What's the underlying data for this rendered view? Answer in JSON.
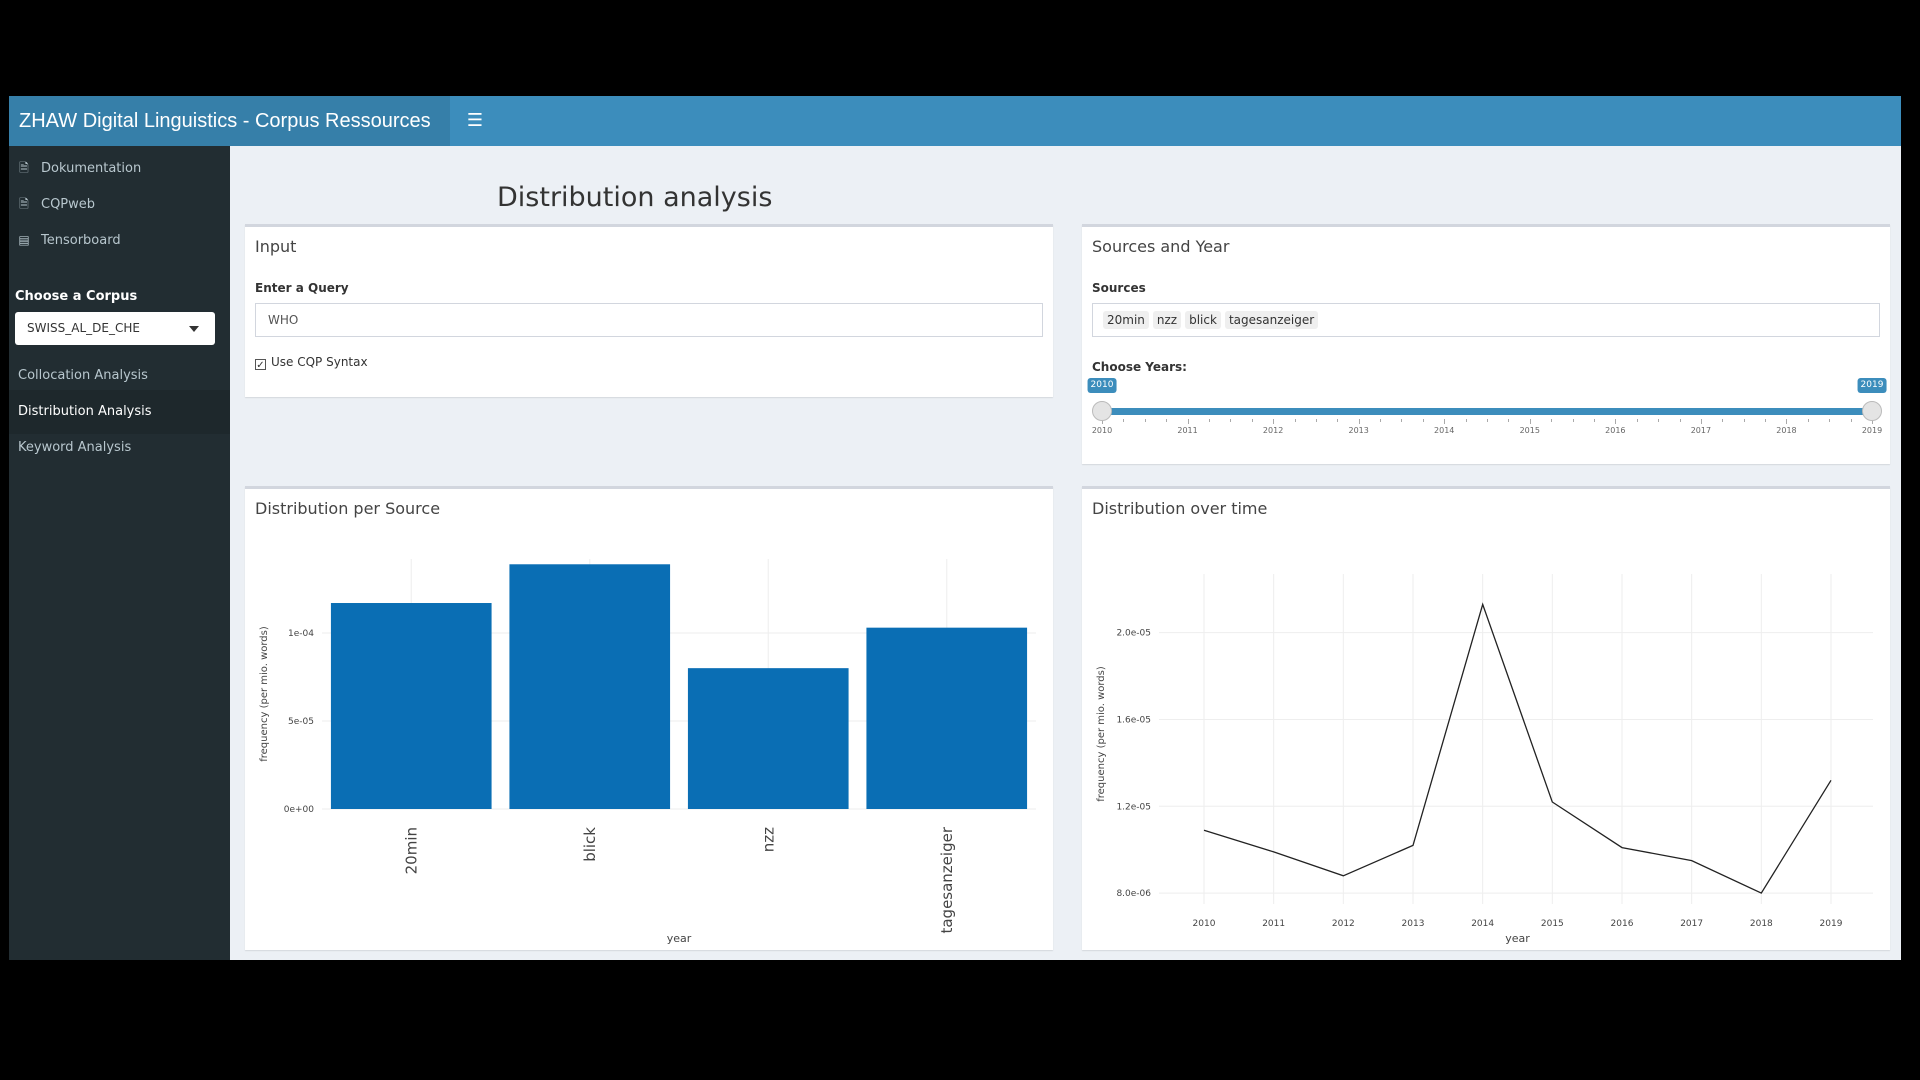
{
  "header": {
    "title": "ZHAW Digital Linguistics - Corpus Ressources",
    "menu_icon": "bars-icon"
  },
  "sidebar": {
    "links": [
      {
        "label": "Dokumentation",
        "icon": "file-icon"
      },
      {
        "label": "CQPweb",
        "icon": "file-icon"
      },
      {
        "label": "Tensorboard",
        "icon": "chart-icon"
      }
    ],
    "corpus_label": "Choose a Corpus",
    "corpus_value": "SWISS_AL_DE_CHE",
    "menu": [
      {
        "label": "Collocation Analysis"
      },
      {
        "label": "Distribution Analysis",
        "active": true
      },
      {
        "label": "Keyword Analysis"
      }
    ]
  },
  "main": {
    "page_title": "Distribution analysis",
    "input_box": {
      "title": "Input",
      "query_label": "Enter a Query",
      "query_value": "WHO",
      "cqp_label": "Use CQP Syntax",
      "cqp_checked": true
    },
    "sources_box": {
      "title": "Sources and Year",
      "sources_label": "Sources",
      "sources": [
        "20min",
        "nzz",
        "blick",
        "tagesanzeiger"
      ],
      "years_label": "Choose Years:",
      "year_min": 2010,
      "year_max": 2019,
      "selected_from": "2010",
      "selected_to": "2019",
      "year_ticks": [
        "2010",
        "2011",
        "2012",
        "2013",
        "2014",
        "2015",
        "2016",
        "2017",
        "2018",
        "2019"
      ]
    },
    "source_chart_title": "Distribution per Source",
    "time_chart_title": "Distribution over time"
  },
  "chart_data": [
    {
      "type": "bar",
      "categories": [
        "20min",
        "blick",
        "nzz",
        "tagesanzeiger"
      ],
      "values": [
        0.000117,
        0.000139,
        8e-05,
        0.000103
      ],
      "ylim": [
        0,
        0.000142
      ],
      "yticks": [
        0,
        5e-05,
        0.0001
      ],
      "ytick_labels": [
        "0e+00",
        "5e-05",
        "1e-04"
      ],
      "xlabel": "year",
      "ylabel": "frequency (per mio. words)",
      "color": "#0a6eb4"
    },
    {
      "type": "line",
      "x": [
        2010,
        2011,
        2012,
        2013,
        2014,
        2015,
        2016,
        2017,
        2018,
        2019
      ],
      "x_labels": [
        "2010",
        "2011",
        "2012",
        "2013",
        "2014",
        "2015",
        "2016",
        "2017",
        "2018",
        "2019"
      ],
      "values": [
        1.09e-05,
        9.9e-06,
        8.8e-06,
        1.02e-05,
        2.13e-05,
        1.22e-05,
        1.01e-05,
        9.5e-06,
        8e-06,
        1.32e-05
      ],
      "ylim": [
        7.5e-06,
        2.27e-05
      ],
      "yticks": [
        8e-06,
        1.2e-05,
        1.6e-05,
        2e-05
      ],
      "ytick_labels": [
        "8.0e-06",
        "1.2e-05",
        "1.6e-05",
        "2.0e-05"
      ],
      "xlabel": "year",
      "ylabel": "frequency (per mio. words)",
      "color": "#222222"
    }
  ]
}
